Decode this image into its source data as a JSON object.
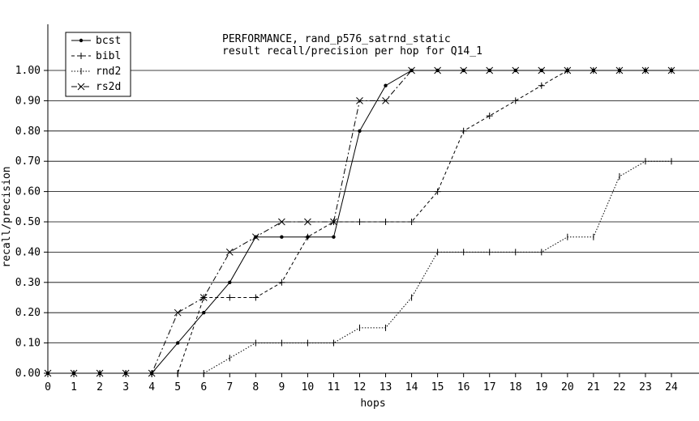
{
  "chart_data": {
    "type": "line",
    "title": "PERFORMANCE, rand_p576_satrnd_static",
    "subtitle": "result recall/precision per hop for Q14_1",
    "xlabel": "hops",
    "ylabel": "recall/precision",
    "xlim": [
      0,
      24
    ],
    "ylim": [
      0,
      1.0
    ],
    "x": [
      0,
      1,
      2,
      3,
      4,
      5,
      6,
      7,
      8,
      9,
      10,
      11,
      12,
      13,
      14,
      15,
      16,
      17,
      18,
      19,
      20,
      21,
      22,
      23,
      24
    ],
    "xticks": [
      "0",
      "1",
      "2",
      "3",
      "4",
      "5",
      "6",
      "7",
      "8",
      "9",
      "10",
      "11",
      "12",
      "13",
      "14",
      "15",
      "16",
      "17",
      "18",
      "19",
      "20",
      "21",
      "22",
      "23",
      "24"
    ],
    "yticks": [
      "0.00",
      "0.10",
      "0.20",
      "0.30",
      "0.40",
      "0.50",
      "0.60",
      "0.70",
      "0.80",
      "0.90",
      "1.00"
    ],
    "grid": "horizontal",
    "legend_position": "top-left",
    "series": [
      {
        "name": "bcst",
        "style": "solid",
        "marker": "dot",
        "values": [
          0,
          0,
          0,
          0,
          0,
          0.1,
          0.2,
          0.3,
          0.45,
          0.45,
          0.45,
          0.45,
          0.8,
          0.95,
          1.0,
          1.0,
          1.0,
          1.0,
          1.0,
          1.0,
          1.0,
          1.0,
          1.0,
          1.0,
          1.0
        ]
      },
      {
        "name": "bibl",
        "style": "dashed",
        "marker": "plus",
        "values": [
          0,
          0,
          0,
          0,
          0,
          0,
          0.25,
          0.25,
          0.25,
          0.3,
          0.45,
          0.5,
          0.5,
          0.5,
          0.5,
          0.6,
          0.8,
          0.85,
          0.9,
          0.95,
          1.0,
          1.0,
          1.0,
          1.0,
          1.0
        ]
      },
      {
        "name": "rnd2",
        "style": "dotted",
        "marker": "tick",
        "values": [
          0,
          0,
          0,
          0,
          0,
          0,
          0,
          0.05,
          0.1,
          0.1,
          0.1,
          0.1,
          0.15,
          0.15,
          0.25,
          0.4,
          0.4,
          0.4,
          0.4,
          0.4,
          0.45,
          0.45,
          0.65,
          0.7,
          0.7
        ]
      },
      {
        "name": "rs2d",
        "style": "dashdot",
        "marker": "cross",
        "values": [
          0,
          0,
          0,
          0,
          0,
          0.2,
          0.25,
          0.4,
          0.45,
          0.5,
          0.5,
          0.5,
          0.9,
          0.9,
          1.0,
          1.0,
          1.0,
          1.0,
          1.0,
          1.0,
          1.0,
          1.0,
          1.0,
          1.0,
          1.0
        ]
      }
    ]
  }
}
